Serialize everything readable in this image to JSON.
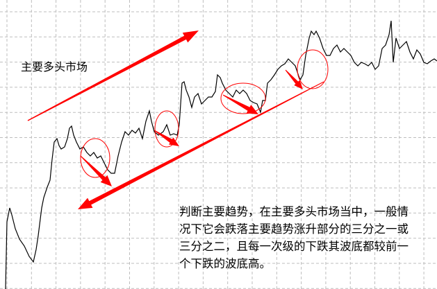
{
  "chart_data": {
    "type": "line",
    "title": "",
    "xlabel": "",
    "ylabel": "",
    "grid": true,
    "line_color": "#000000",
    "annotation_color": "#ff0000",
    "series": [
      {
        "points": [
          [
            0,
            0
          ],
          [
            2,
            97
          ],
          [
            6,
            117
          ],
          [
            9,
            107
          ],
          [
            14,
            87
          ],
          [
            20,
            72
          ],
          [
            27,
            62
          ],
          [
            34,
            47
          ],
          [
            40,
            39
          ],
          [
            44,
            57
          ],
          [
            47,
            77
          ],
          [
            52,
            117
          ],
          [
            55,
            132
          ],
          [
            60,
            147
          ],
          [
            64,
            157
          ],
          [
            67,
            187
          ],
          [
            70,
            212
          ],
          [
            74,
            217
          ],
          [
            77,
            207
          ],
          [
            80,
            202
          ],
          [
            85,
            205
          ],
          [
            89,
            217
          ],
          [
            92,
            232
          ],
          [
            95,
            235
          ],
          [
            98,
            222
          ],
          [
            102,
            212
          ],
          [
            107,
            202
          ],
          [
            112,
            205
          ],
          [
            117,
            197
          ],
          [
            122,
            192
          ],
          [
            127,
            197
          ],
          [
            132,
            189
          ],
          [
            137,
            192
          ],
          [
            142,
            182
          ],
          [
            147,
            172
          ],
          [
            152,
            167
          ],
          [
            157,
            167
          ],
          [
            162,
            192
          ],
          [
            167,
            212
          ],
          [
            172,
            227
          ],
          [
            177,
            222
          ],
          [
            182,
            229
          ],
          [
            187,
            225
          ],
          [
            192,
            232
          ],
          [
            197,
            217
          ],
          [
            202,
            242
          ],
          [
            207,
            257
          ],
          [
            210,
            242
          ],
          [
            214,
            227
          ],
          [
            220,
            222
          ],
          [
            227,
            227
          ],
          [
            232,
            237
          ],
          [
            237,
            222
          ],
          [
            242,
            224
          ],
          [
            247,
            222
          ],
          [
            250,
            237
          ],
          [
            254,
            297
          ],
          [
            257,
            299
          ],
          [
            260,
            287
          ],
          [
            264,
            277
          ],
          [
            268,
            262
          ],
          [
            272,
            277
          ],
          [
            277,
            282
          ],
          [
            282,
            267
          ],
          [
            287,
            272
          ],
          [
            292,
            277
          ],
          [
            297,
            277
          ],
          [
            302,
            285
          ],
          [
            305,
            309
          ],
          [
            309,
            305
          ],
          [
            312,
            297
          ],
          [
            317,
            287
          ],
          [
            322,
            282
          ],
          [
            327,
            277
          ],
          [
            332,
            287
          ],
          [
            337,
            282
          ],
          [
            342,
            287
          ],
          [
            347,
            282
          ],
          [
            352,
            272
          ],
          [
            357,
            269
          ],
          [
            362,
            267
          ],
          [
            367,
            255
          ],
          [
            370,
            272
          ],
          [
            374,
            272
          ],
          [
            377,
            297
          ],
          [
            382,
            302
          ],
          [
            387,
            309
          ],
          [
            392,
            317
          ],
          [
            397,
            322
          ],
          [
            402,
            325
          ],
          [
            407,
            332
          ],
          [
            412,
            327
          ],
          [
            417,
            322
          ],
          [
            422,
            307
          ],
          [
            424,
            302
          ],
          [
            428,
            309
          ],
          [
            432,
            337
          ],
          [
            437,
            362
          ],
          [
            440,
            372
          ],
          [
            444,
            367
          ],
          [
            447,
            372
          ],
          [
            452,
            362
          ],
          [
            457,
            347
          ],
          [
            462,
            337
          ],
          [
            467,
            337
          ],
          [
            472,
            347
          ],
          [
            477,
            352
          ],
          [
            482,
            342
          ],
          [
            487,
            347
          ],
          [
            492,
            342
          ],
          [
            497,
            337
          ],
          [
            502,
            327
          ],
          [
            507,
            322
          ],
          [
            512,
            327
          ],
          [
            517,
            325
          ],
          [
            522,
            322
          ],
          [
            527,
            327
          ],
          [
            532,
            317
          ],
          [
            537,
            322
          ],
          [
            542,
            347
          ],
          [
            547,
            352
          ],
          [
            552,
            367
          ],
          [
            555,
            387
          ],
          [
            558,
            327
          ],
          [
            562,
            362
          ],
          [
            567,
            347
          ],
          [
            572,
            352
          ],
          [
            577,
            357
          ],
          [
            582,
            342
          ],
          [
            587,
            332
          ],
          [
            592,
            345
          ],
          [
            597,
            339
          ],
          [
            602,
            327
          ],
          [
            607,
            325
          ],
          [
            612,
            329
          ],
          [
            617,
            332
          ],
          [
            621,
            329
          ]
        ]
      }
    ],
    "annotations": {
      "trend_label": "主要多头市场",
      "note_lines": [
        "判断主要趋势，在主要多头市场当中，一般情",
        "况下它会跌落主要趋势涨升部分的三分之一或",
        "三分之二，且每一次级的下跌其波底都较前一",
        "个下跌的波底高。"
      ]
    }
  }
}
